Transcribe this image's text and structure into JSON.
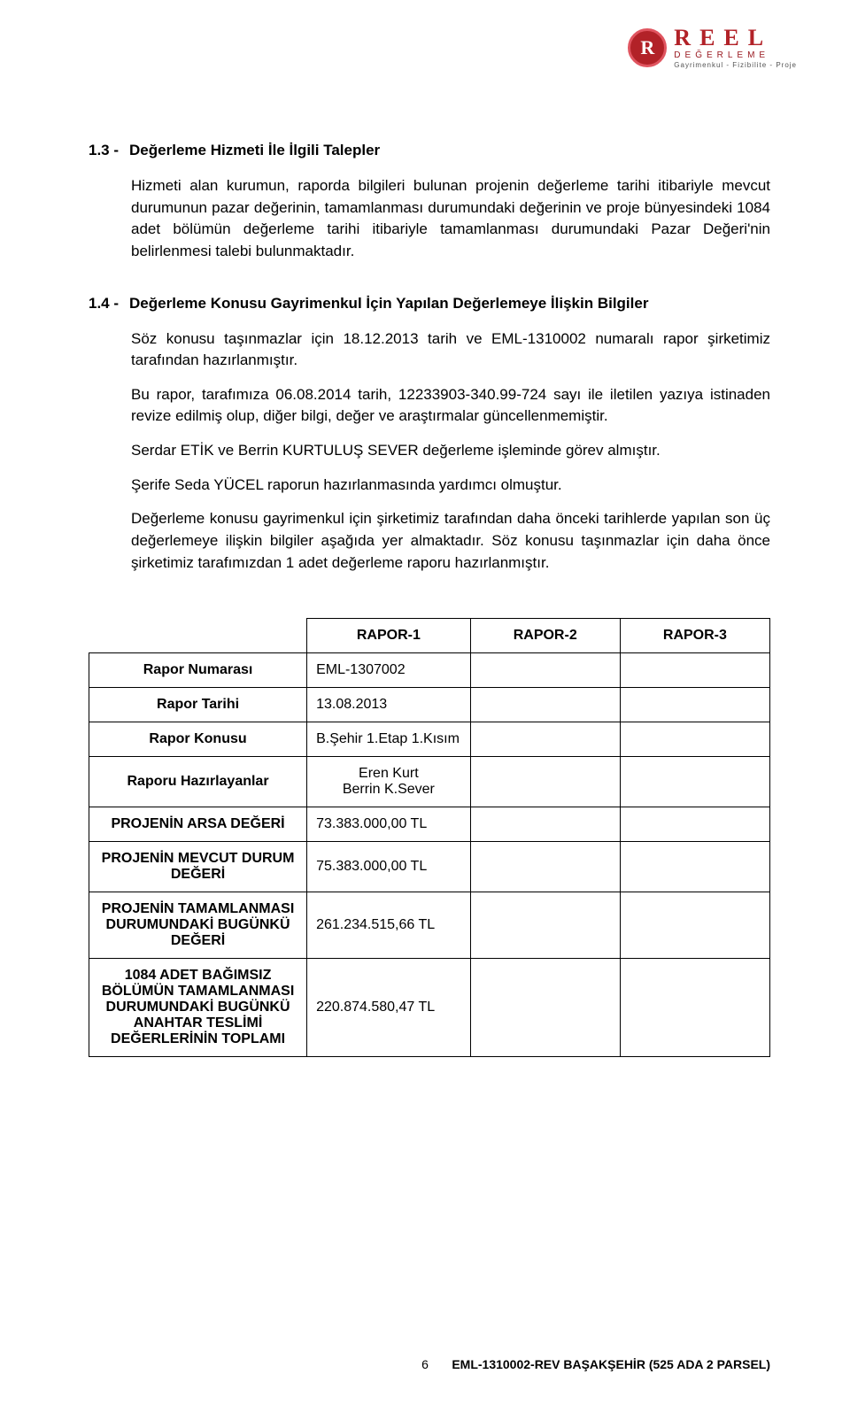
{
  "logo": {
    "badge_letter": "R",
    "brand": "REEL",
    "sub": "DEĞERLEME",
    "tag": "Gayrimenkul - Fizibilite - Proje",
    "brand_color": "#b22228"
  },
  "section_1_3": {
    "num": "1.3 -",
    "title": "Değerleme Hizmeti İle İlgili Talepler",
    "body": "Hizmeti alan kurumun, raporda bilgileri bulunan projenin değerleme tarihi itibariyle mevcut durumunun pazar değerinin, tamamlanması durumundaki değerinin ve proje bünyesindeki 1084 adet bölümün değerleme tarihi itibariyle tamamlanması durumundaki Pazar Değeri'nin belirlenmesi talebi bulunmaktadır."
  },
  "section_1_4": {
    "num": "1.4 -",
    "title": "Değerleme Konusu Gayrimenkul İçin Yapılan Değerlemeye İlişkin Bilgiler",
    "para1": "Söz konusu taşınmazlar için 18.12.2013 tarih ve EML-1310002 numaralı rapor şirketimiz tarafından hazırlanmıştır.",
    "para2": "Bu rapor, tarafımıza 06.08.2014 tarih, 12233903-340.99-724 sayı ile iletilen yazıya istinaden revize edilmiş olup, diğer bilgi, değer ve araştırmalar güncellenmemiştir.",
    "para3": "Serdar ETİK ve Berrin KURTULUŞ SEVER değerleme işleminde görev almıştır.",
    "para4": "Şerife Seda YÜCEL raporun hazırlanmasında yardımcı olmuştur.",
    "para5": "Değerleme konusu gayrimenkul için şirketimiz tarafından daha önceki tarihlerde yapılan son üç değerlemeye ilişkin bilgiler aşağıda yer almaktadır. Söz konusu taşınmazlar için  daha önce şirketimiz tarafımızdan 1 adet değerleme raporu hazırlanmıştır."
  },
  "table": {
    "headers": {
      "c1": "RAPOR-1",
      "c2": "RAPOR-2",
      "c3": "RAPOR-3"
    },
    "rows": [
      {
        "label": "Rapor Numarası",
        "v1": "EML-1307002",
        "v2": "",
        "v3": ""
      },
      {
        "label": "Rapor Tarihi",
        "v1": "13.08.2013",
        "v2": "",
        "v3": ""
      },
      {
        "label": "Rapor Konusu",
        "v1": "B.Şehir 1.Etap 1.Kısım",
        "v2": "",
        "v3": ""
      },
      {
        "label": "Raporu Hazırlayanlar",
        "v1": "Eren Kurt\nBerrin K.Sever",
        "v2": "",
        "v3": ""
      },
      {
        "label": "PROJENİN ARSA DEĞERİ",
        "v1": "73.383.000,00 TL",
        "v2": "",
        "v3": ""
      },
      {
        "label": "PROJENİN MEVCUT DURUM DEĞERİ",
        "v1": "75.383.000,00 TL",
        "v2": "",
        "v3": ""
      },
      {
        "label": "PROJENİN TAMAMLANMASI DURUMUNDAKİ BUGÜNKÜ DEĞERİ",
        "v1": "261.234.515,66 TL",
        "v2": "",
        "v3": ""
      },
      {
        "label": "1084 ADET BAĞIMSIZ BÖLÜMÜN TAMAMLANMASI DURUMUNDAKİ BUGÜNKÜ ANAHTAR TESLİMİ DEĞERLERİNİN TOPLAMI",
        "v1": "220.874.580,47 TL",
        "v2": "",
        "v3": ""
      }
    ]
  },
  "footer": {
    "page": "6",
    "ref": "EML-1310002-REV BAŞAKŞEHİR (525 ADA 2 PARSEL)"
  }
}
